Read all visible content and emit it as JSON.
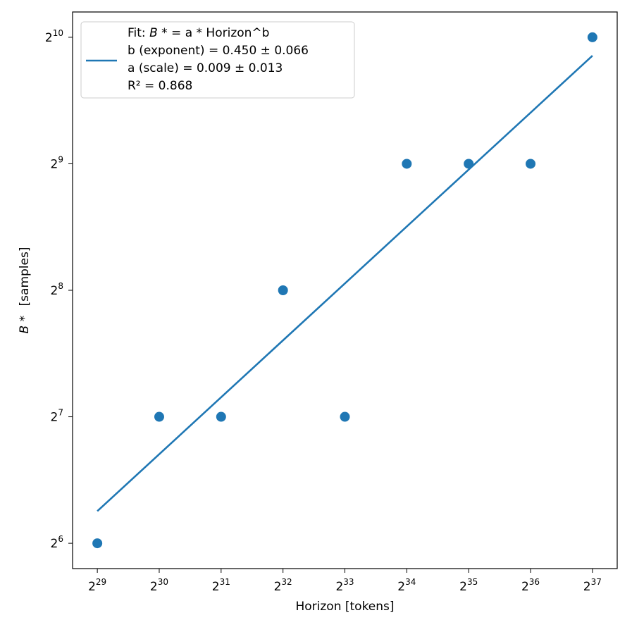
{
  "chart_data": {
    "type": "scatter",
    "x_scale": "log2",
    "y_scale": "log2",
    "xlabel": "Horizon [tokens]",
    "ylabel": {
      "symbol": "B *",
      "rest": "[samples]"
    },
    "xlim": [
      28.6,
      37.4
    ],
    "ylim": [
      5.8,
      10.2
    ],
    "x_ticks": [
      {
        "base": "2",
        "exp": "29",
        "value": 29
      },
      {
        "base": "2",
        "exp": "30",
        "value": 30
      },
      {
        "base": "2",
        "exp": "31",
        "value": 31
      },
      {
        "base": "2",
        "exp": "32",
        "value": 32
      },
      {
        "base": "2",
        "exp": "33",
        "value": 33
      },
      {
        "base": "2",
        "exp": "34",
        "value": 34
      },
      {
        "base": "2",
        "exp": "35",
        "value": 35
      },
      {
        "base": "2",
        "exp": "36",
        "value": 36
      },
      {
        "base": "2",
        "exp": "37",
        "value": 37
      }
    ],
    "y_ticks": [
      {
        "base": "2",
        "exp": "6",
        "value": 6
      },
      {
        "base": "2",
        "exp": "7",
        "value": 7
      },
      {
        "base": "2",
        "exp": "8",
        "value": 8
      },
      {
        "base": "2",
        "exp": "9",
        "value": 9
      },
      {
        "base": "2",
        "exp": "10",
        "value": 10
      }
    ],
    "points": {
      "x": [
        "2^29",
        "2^30",
        "2^31",
        "2^32",
        "2^33",
        "2^34",
        "2^35",
        "2^36",
        "2^37"
      ],
      "y": [
        64,
        128,
        128,
        256,
        128,
        512,
        512,
        512,
        1024
      ],
      "x_exp": [
        29,
        30,
        31,
        32,
        33,
        34,
        35,
        36,
        37
      ],
      "y_exp": [
        6,
        7,
        7,
        8,
        7,
        9,
        9,
        9,
        10
      ]
    },
    "fit": {
      "exponent": 0.45,
      "scale": 0.009,
      "x_exp_range": [
        29,
        37
      ]
    },
    "legend": {
      "placement": "top-left",
      "lines": [
        {
          "prefix": "Fit: ",
          "symbol": "B *",
          "suffix": "  = a * Horizon^b"
        },
        {
          "text": "b (exponent) = 0.450 ± 0.066"
        },
        {
          "text": "a (scale) = 0.009 ± 0.013"
        },
        {
          "text": "R² = 0.868"
        }
      ]
    },
    "colors": {
      "series": "#1f77b4",
      "axes": "#000000",
      "legend_border": "#cccccc"
    },
    "grid": false
  }
}
